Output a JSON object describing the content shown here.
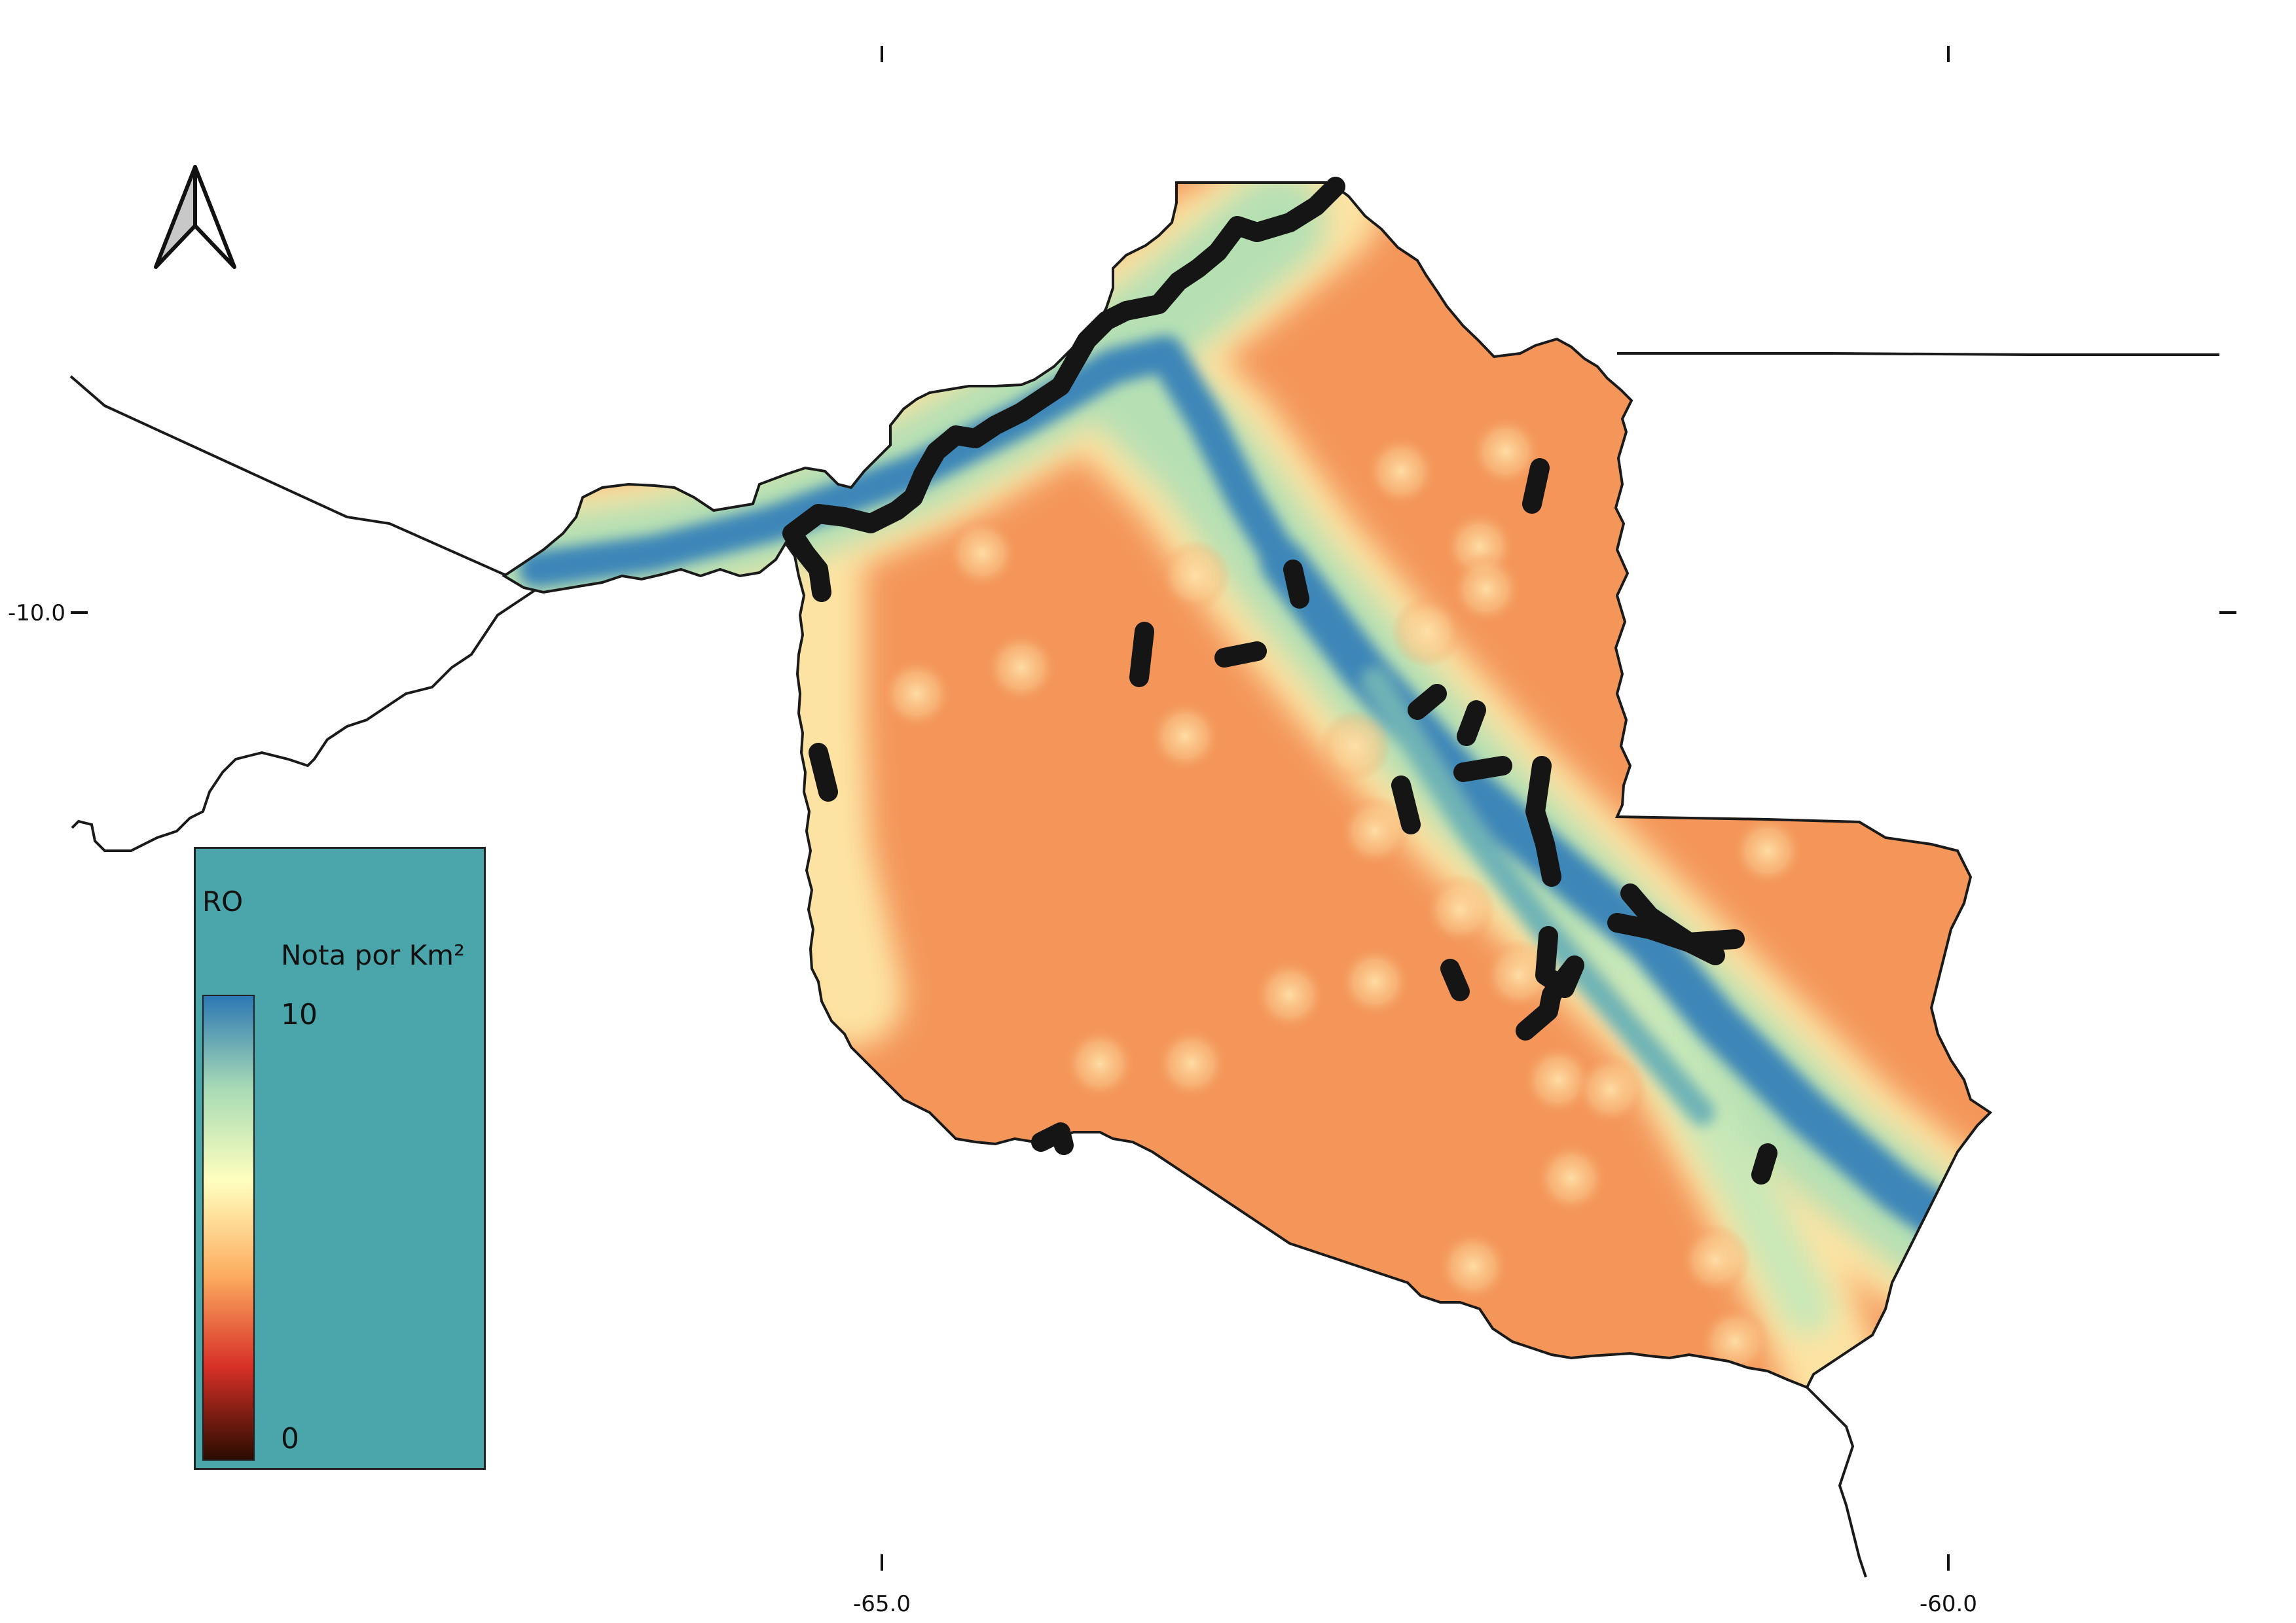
{
  "axes": {
    "x_ticks": [
      "-65.0",
      "-60.0"
    ],
    "y_ticks": [
      "-10.0"
    ]
  },
  "legend": {
    "layer": "RO",
    "field": "Nota por Km²",
    "max": "10",
    "min": "0",
    "ramp_colors": [
      "#2c78b4",
      "#a8dbb5",
      "#ffffbf",
      "#fdae61",
      "#d73027",
      "#2a0b00"
    ]
  },
  "colors": {
    "background_fill": "#f4965a",
    "legend_bg": "#4aa6aa",
    "road": "#151515",
    "border": "#1a1a1a"
  },
  "icons": [
    "north-arrow-icon"
  ]
}
